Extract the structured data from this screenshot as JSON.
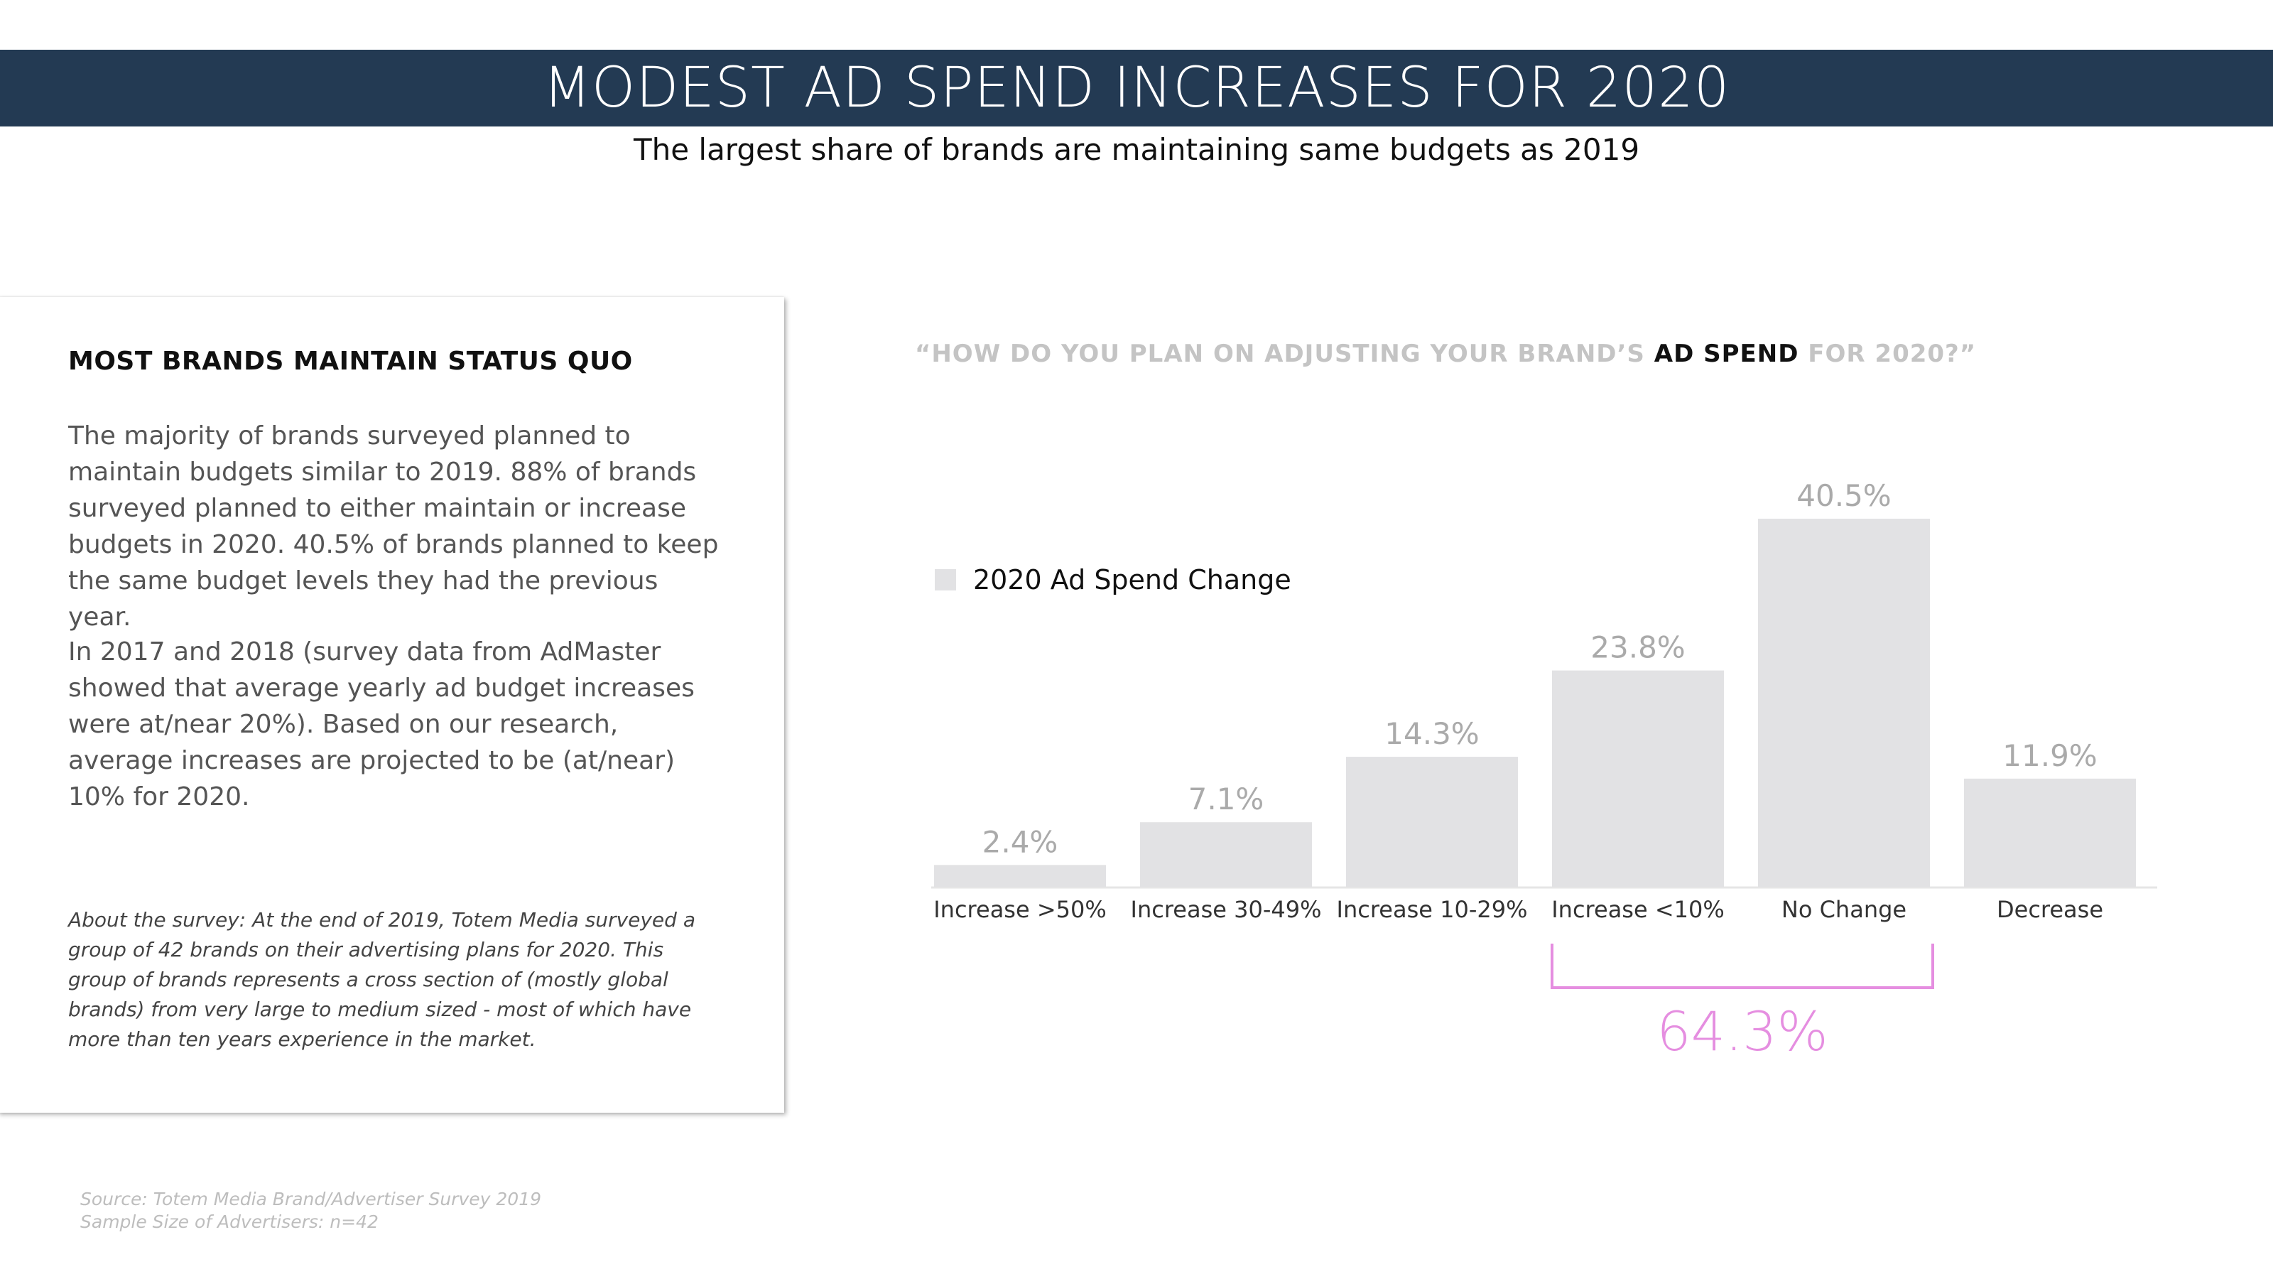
{
  "header": {
    "title": "MODEST AD SPEND INCREASES FOR 2020",
    "subtitle": "The largest share of brands are maintaining same budgets as 2019"
  },
  "panel": {
    "heading": "MOST BRANDS MAINTAIN STATUS QUO",
    "paragraph1": "The majority of brands surveyed planned to maintain budgets similar to 2019. 88% of brands surveyed planned to either maintain or increase budgets in 2020. 40.5% of brands planned to keep the same budget levels they had the previous year.",
    "paragraph2": "In 2017 and 2018 (survey data from AdMaster showed that average yearly ad budget increases were at/near 20%). Based on our research, average increases are projected to be (at/near) 10% for 2020.",
    "about_label": "About the survey:",
    "about_text": " At the end of 2019, Totem Media surveyed a group of 42 brands on their advertising plans for 2020. This group of brands represents a cross section of (mostly global brands) from very large to medium sized - most of which have more than ten years experience in the market."
  },
  "source": {
    "line1": "Source: Totem Media Brand/Advertiser Survey 2019",
    "line2": "Sample Size of Advertisers: n=42"
  },
  "question": {
    "part1": "“HOW DO YOU PLAN ON ADJUSTING YOUR BRAND’S ",
    "emphasis": "AD SPEND",
    "part2": " FOR 2020?”"
  },
  "chart_data": {
    "type": "bar",
    "title": "“HOW DO YOU PLAN ON ADJUSTING YOUR BRAND’S AD SPEND FOR 2020?”",
    "categories": [
      "Increase >50%",
      "Increase 30-49%",
      "Increase 10-29%",
      "Increase <10%",
      "No Change",
      "Decrease"
    ],
    "series": [
      {
        "name": "2020 Ad Spend Change",
        "values": [
          2.4,
          7.1,
          14.3,
          23.8,
          40.5,
          11.9
        ]
      }
    ],
    "data_labels": [
      "2.4%",
      "7.1%",
      "14.3%",
      "23.8%",
      "40.5%",
      "11.9%"
    ],
    "ylim": [
      0,
      40.5
    ],
    "xlabel": "",
    "ylabel": "",
    "grid": false,
    "legend": "left",
    "annotation": {
      "text": "64.3%",
      "from_category": "Increase <10%",
      "to_category": "No Change"
    },
    "colors": {
      "bar": "#e2e2e4",
      "data_label": "#aaaaaa",
      "tick_label": "#333333",
      "annotation": "#e58ee0",
      "axis": "#e6e6e6"
    }
  }
}
